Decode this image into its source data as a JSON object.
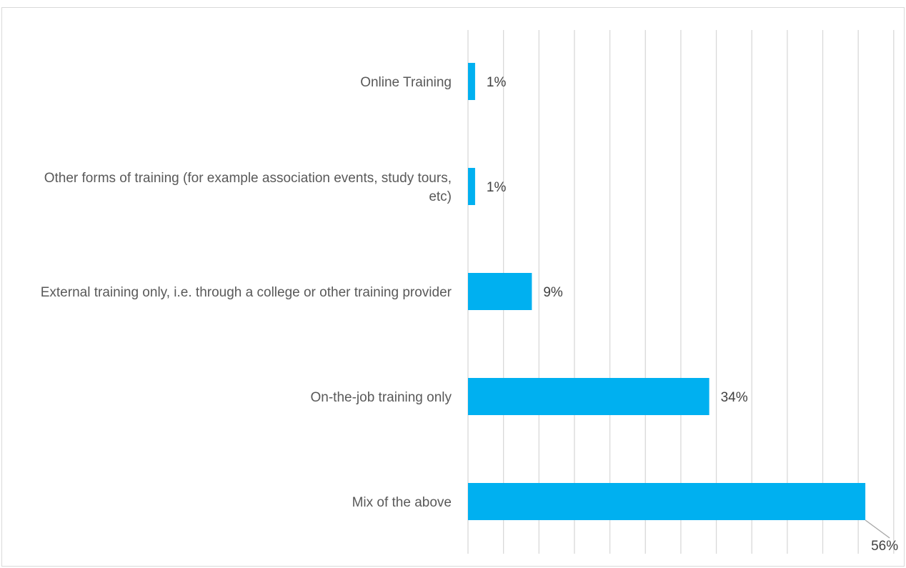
{
  "chart_data": {
    "type": "bar",
    "orientation": "horizontal",
    "categories": [
      "Online Training",
      "Other forms of training (for example association events, study tours, etc)",
      "External training only, i.e. through a college or other training provider",
      "On-the-job training only",
      "Mix of the above"
    ],
    "values": [
      1,
      1,
      9,
      34,
      56
    ],
    "data_labels": [
      "1%",
      "1%",
      "9%",
      "34%",
      "56%"
    ],
    "title": "",
    "xlabel": "",
    "ylabel": "",
    "xlim": [
      0,
      60
    ],
    "gridlines": "vertical",
    "x_tick_labels_visible": false,
    "legend": "none",
    "bar_color": "#00B0F0",
    "gridline_color": "#d9d9d9"
  }
}
